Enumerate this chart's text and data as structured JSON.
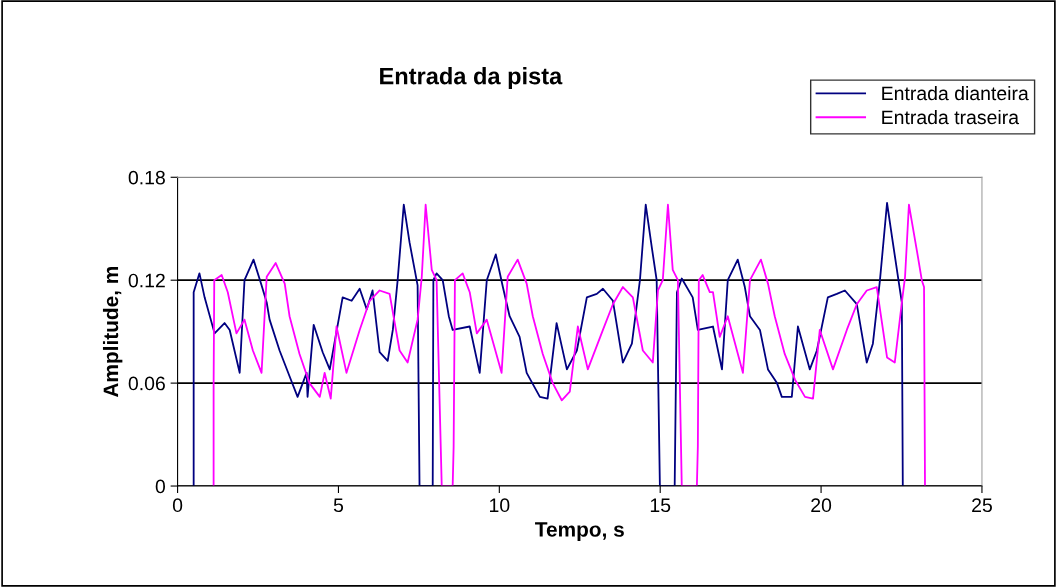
{
  "chart_data": {
    "type": "line",
    "title": "Entrada da pista",
    "xlabel": "Tempo, s",
    "ylabel": "Amplitude, m",
    "xlim": [
      0,
      25
    ],
    "xticks": [
      0,
      5,
      10,
      15,
      20,
      25
    ],
    "ylim": [
      0,
      0.18
    ],
    "yticks": [
      0,
      0.06,
      0.12,
      0.18
    ],
    "grid": "y",
    "legend": "top right",
    "marker": "none",
    "line_style": "solid",
    "series": [
      {
        "name": "Entrada dianteira",
        "color": "#000080",
        "x": [
          0.5,
          0.5,
          0.68,
          0.84,
          1.15,
          1.46,
          1.62,
          1.93,
          2.08,
          2.36,
          2.61,
          2.77,
          2.86,
          3.17,
          3.48,
          3.73,
          4.01,
          4.04,
          4.23,
          4.51,
          4.73,
          5.13,
          5.41,
          5.66,
          5.88,
          6.06,
          6.28,
          6.53,
          6.69,
          6.84,
          7.03,
          7.21,
          7.37,
          7.46,
          7.52,
          7.93,
          7.95,
          8.05,
          8.24,
          8.43,
          8.55,
          9.08,
          9.39,
          9.61,
          9.89,
          10.11,
          10.32,
          10.63,
          10.85,
          11.26,
          11.5,
          11.78,
          12.1,
          12.41,
          12.72,
          13.03,
          13.22,
          13.53,
          13.84,
          14.12,
          14.37,
          14.55,
          14.74,
          14.89,
          14.99,
          15.45,
          15.52,
          15.67,
          16.01,
          16.17,
          16.64,
          16.92,
          17.1,
          17.41,
          17.63,
          17.79,
          18.1,
          18.35,
          18.63,
          18.78,
          19.09,
          19.28,
          19.65,
          19.87,
          20.21,
          20.49,
          20.74,
          21.11,
          21.42,
          21.61,
          21.83,
          22.05,
          22.23,
          22.39,
          22.51,
          22.54
        ],
        "values": [
          0,
          0.113,
          0.124,
          0.11,
          0.089,
          0.095,
          0.091,
          0.066,
          0.12,
          0.132,
          0.117,
          0.107,
          0.097,
          0.079,
          0.064,
          0.052,
          0.066,
          0.052,
          0.094,
          0.078,
          0.068,
          0.11,
          0.108,
          0.115,
          0.103,
          0.114,
          0.078,
          0.073,
          0.091,
          0.12,
          0.164,
          0.142,
          0.126,
          0.117,
          0,
          0,
          0.12,
          0.124,
          0.12,
          0.099,
          0.091,
          0.093,
          0.066,
          0.12,
          0.135,
          0.116,
          0.099,
          0.087,
          0.066,
          0.052,
          0.051,
          0.095,
          0.068,
          0.079,
          0.11,
          0.112,
          0.115,
          0.108,
          0.072,
          0.083,
          0.12,
          0.164,
          0.139,
          0.12,
          0,
          0,
          0.113,
          0.121,
          0.11,
          0.091,
          0.093,
          0.068,
          0.12,
          0.132,
          0.116,
          0.099,
          0.091,
          0.068,
          0.06,
          0.052,
          0.052,
          0.093,
          0.068,
          0.079,
          0.11,
          0.112,
          0.114,
          0.106,
          0.072,
          0.083,
          0.12,
          0.165,
          0.142,
          0.122,
          0.107,
          0
        ]
      },
      {
        "name": "Entrada traseira",
        "color": "#ff00ff",
        "x": [
          1.12,
          1.12,
          1.14,
          1.37,
          1.56,
          1.83,
          2.08,
          2.34,
          2.61,
          2.77,
          3.05,
          3.33,
          3.48,
          3.79,
          4.1,
          4.42,
          4.57,
          4.76,
          4.94,
          5.25,
          5.66,
          5.97,
          6.28,
          6.59,
          6.9,
          7.15,
          7.46,
          7.59,
          7.71,
          7.9,
          8.05,
          8.21,
          8.55,
          8.58,
          8.62,
          8.86,
          9.08,
          9.3,
          9.61,
          10.07,
          10.26,
          10.57,
          10.85,
          11.04,
          11.35,
          11.66,
          11.94,
          12.19,
          12.44,
          12.75,
          13.22,
          13.53,
          13.84,
          14.15,
          14.46,
          14.77,
          14.93,
          15.08,
          15.24,
          15.39,
          15.55,
          15.67,
          16.14,
          16.17,
          16.2,
          16.32,
          16.54,
          16.64,
          16.85,
          17.1,
          17.57,
          17.79,
          18.13,
          18.35,
          18.56,
          18.87,
          19.19,
          19.5,
          19.75,
          19.96,
          20.37,
          20.8,
          21.11,
          21.42,
          21.73,
          22.05,
          22.29,
          22.51,
          22.61,
          22.73,
          22.98,
          23.13,
          23.2,
          23.23
        ],
        "values": [
          0,
          0.058,
          0.12,
          0.123,
          0.113,
          0.089,
          0.097,
          0.079,
          0.066,
          0.122,
          0.13,
          0.118,
          0.099,
          0.077,
          0.06,
          0.052,
          0.066,
          0.051,
          0.093,
          0.066,
          0.091,
          0.108,
          0.114,
          0.112,
          0.079,
          0.072,
          0.097,
          0.122,
          0.164,
          0.126,
          0.12,
          0,
          0,
          0.023,
          0.12,
          0.124,
          0.113,
          0.089,
          0.097,
          0.066,
          0.122,
          0.132,
          0.118,
          0.099,
          0.077,
          0.06,
          0.05,
          0.055,
          0.093,
          0.068,
          0.091,
          0.106,
          0.116,
          0.11,
          0.079,
          0.072,
          0.114,
          0.12,
          0.164,
          0.126,
          0.12,
          0,
          0,
          0.023,
          0.12,
          0.123,
          0.113,
          0.113,
          0.087,
          0.099,
          0.066,
          0.12,
          0.132,
          0.118,
          0.099,
          0.077,
          0.062,
          0.052,
          0.051,
          0.091,
          0.068,
          0.091,
          0.106,
          0.114,
          0.116,
          0.075,
          0.072,
          0.107,
          0.122,
          0.164,
          0.137,
          0.12,
          0.116,
          0
        ]
      }
    ]
  }
}
